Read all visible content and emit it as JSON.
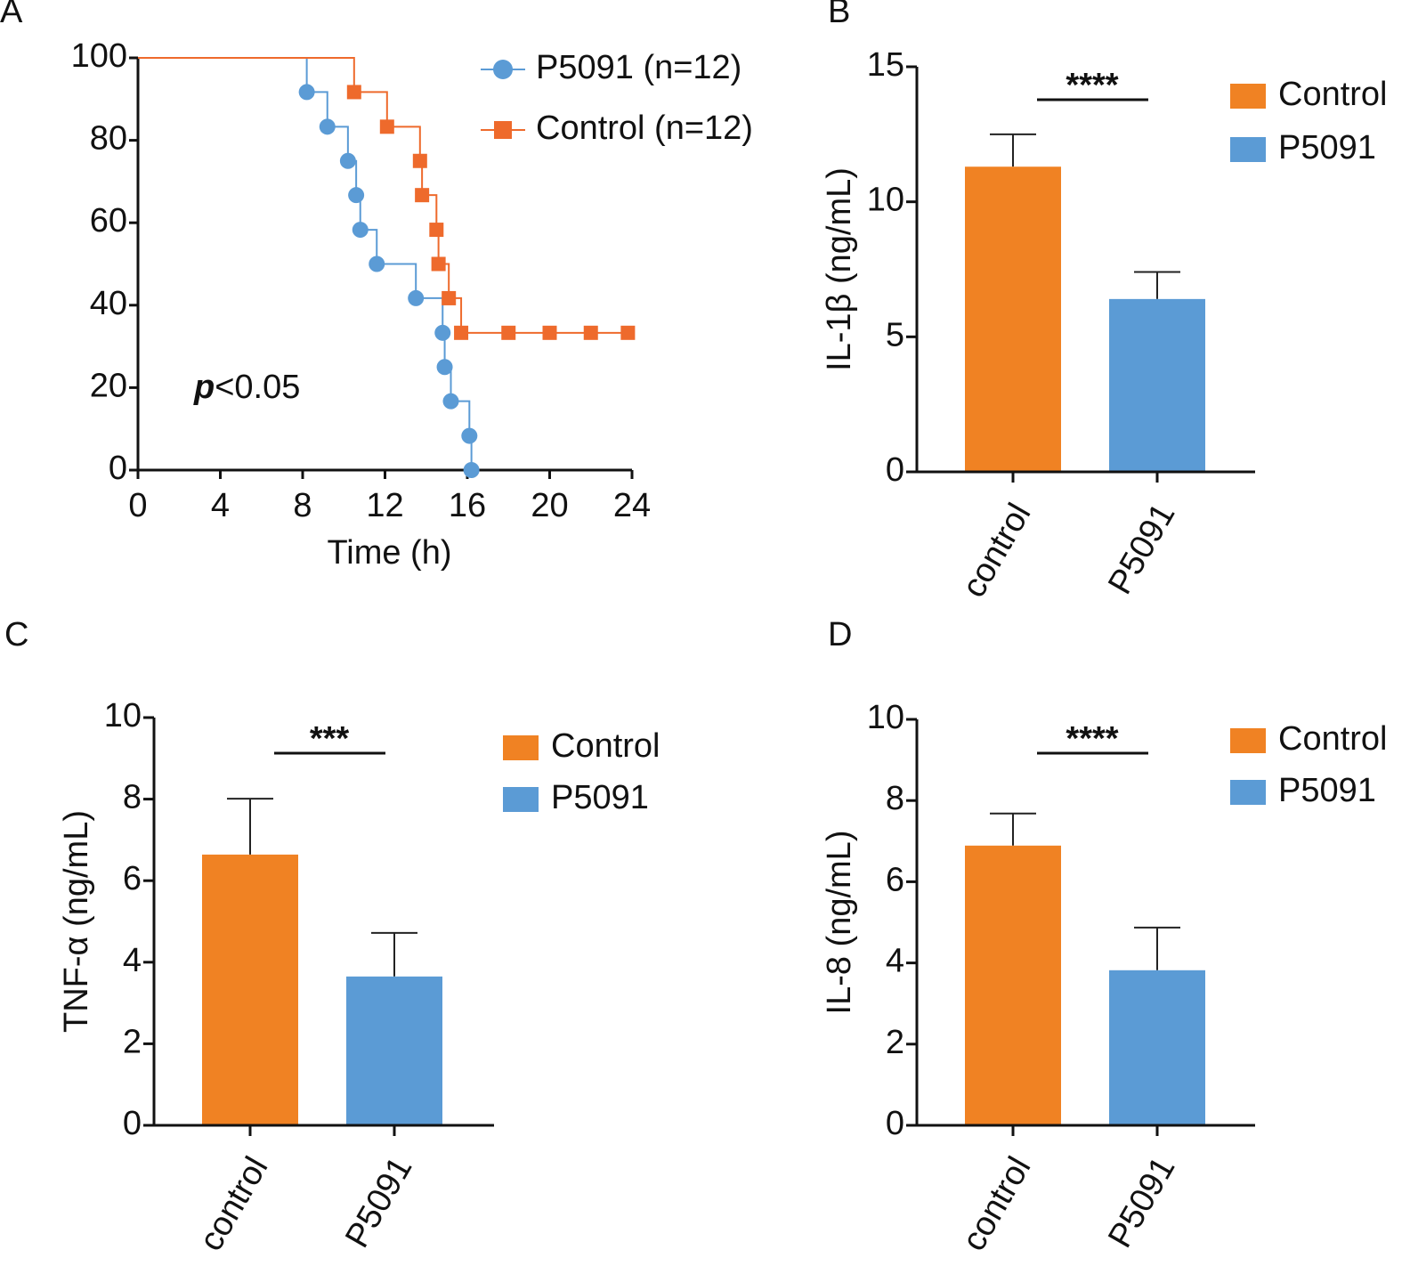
{
  "chart_data": [
    {
      "type": "line",
      "label": "A",
      "step": true,
      "xlabel": "Time (h)",
      "xlim": [
        0,
        24
      ],
      "xticks": [
        0,
        4,
        8,
        12,
        16,
        20,
        24
      ],
      "ylim": [
        0,
        100
      ],
      "yticks": [
        0,
        20,
        40,
        60,
        80,
        100
      ],
      "annotation": {
        "italic": "p",
        "text": "<0.05"
      },
      "series": [
        {
          "name": "P5091  (n=12)",
          "color": "#5b9bd5",
          "marker": "circle",
          "x": [
            0,
            8.2,
            9.2,
            10.2,
            10.6,
            10.8,
            11.6,
            13.5,
            14.8,
            14.9,
            15.2,
            16.1,
            16.2
          ],
          "values": [
            100,
            91.7,
            83.3,
            75,
            66.7,
            58.3,
            50,
            41.7,
            33.3,
            25,
            16.7,
            8.3,
            0
          ]
        },
        {
          "name": "Control (n=12)",
          "color": "#ee6a2c",
          "marker": "square",
          "x": [
            0,
            10.5,
            12.1,
            13.7,
            13.8,
            14.5,
            14.6,
            15.1,
            15.7,
            18,
            20,
            22,
            23.8
          ],
          "values": [
            100,
            91.7,
            83.3,
            75,
            66.7,
            58.3,
            50,
            41.7,
            33.3,
            33.3,
            33.3,
            33.3,
            33.3
          ]
        }
      ]
    },
    {
      "type": "bar",
      "label": "B",
      "ylabel": "IL-1β (ng/mL)",
      "categories": [
        "control",
        "P5091"
      ],
      "values": [
        11.3,
        6.4
      ],
      "errors": [
        1.2,
        1.0
      ],
      "colors": [
        "#f08223",
        "#5b9bd5"
      ],
      "legend": [
        "Control",
        "P5091"
      ],
      "significance": "****",
      "ylim": [
        0,
        15
      ],
      "yticks": [
        0,
        5,
        10,
        15
      ]
    },
    {
      "type": "bar",
      "label": "C",
      "ylabel": "TNF-α (ng/mL)",
      "categories": [
        "control",
        "P5091"
      ],
      "values": [
        6.64,
        3.65
      ],
      "errors": [
        1.37,
        1.07
      ],
      "colors": [
        "#f08223",
        "#5b9bd5"
      ],
      "legend": [
        "Control",
        "P5091"
      ],
      "significance": "***",
      "ylim": [
        0,
        10
      ],
      "yticks": [
        0,
        2,
        4,
        6,
        8,
        10
      ]
    },
    {
      "type": "bar",
      "label": "D",
      "ylabel": "IL-8 (ng/mL)",
      "categories": [
        "control",
        "P5091"
      ],
      "values": [
        6.89,
        3.82
      ],
      "errors": [
        0.79,
        1.05
      ],
      "colors": [
        "#f08223",
        "#5b9bd5"
      ],
      "legend": [
        "Control",
        "P5091"
      ],
      "significance": "****",
      "ylim": [
        0,
        10
      ],
      "yticks": [
        0,
        2,
        4,
        6,
        8,
        10
      ]
    }
  ]
}
